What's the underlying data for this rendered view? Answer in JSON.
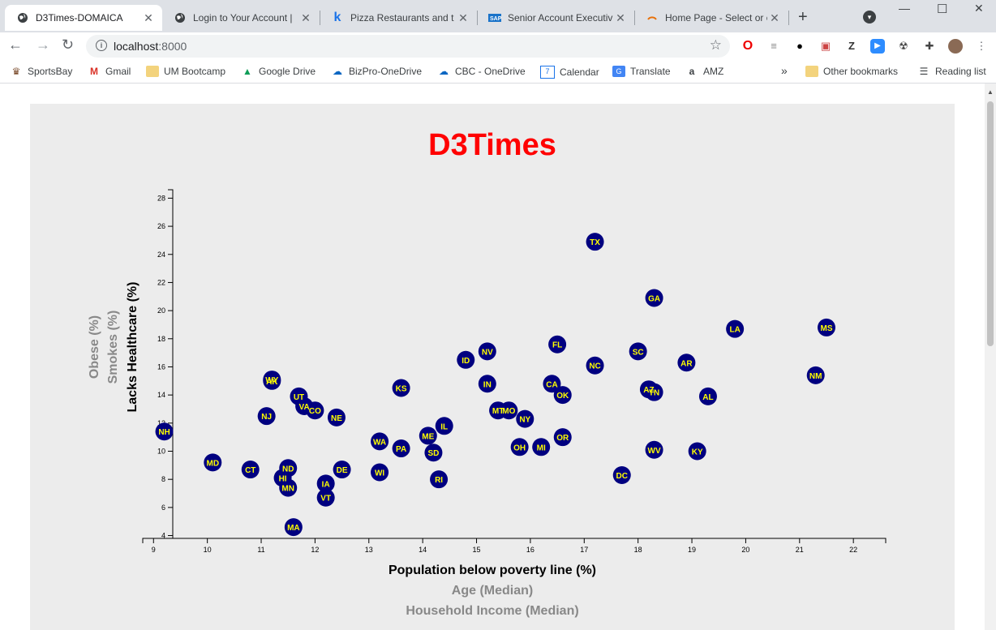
{
  "browser": {
    "tabs": [
      {
        "title": "D3Times-DOMAICA",
        "favicon": "globe-icon",
        "active": true
      },
      {
        "title": "Login to Your Account |",
        "favicon": "globe-icon",
        "active": false
      },
      {
        "title": "Pizza Restaurants and t",
        "favicon": "k-icon",
        "active": false
      },
      {
        "title": "Senior Account Executiv",
        "favicon": "sap-icon",
        "active": false
      },
      {
        "title": "Home Page - Select or c",
        "favicon": "loading-icon",
        "active": false
      }
    ],
    "url_host": "localhost",
    "url_port": ":8000",
    "bookmarks": [
      {
        "label": "SportsBay",
        "icon": "sportsbay-icon"
      },
      {
        "label": "Gmail",
        "icon": "gmail-icon"
      },
      {
        "label": "UM Bootcamp",
        "icon": "folder-icon"
      },
      {
        "label": "Google Drive",
        "icon": "drive-icon"
      },
      {
        "label": "BizPro-OneDrive",
        "icon": "cloud-icon"
      },
      {
        "label": "CBC - OneDrive",
        "icon": "cloud-icon"
      },
      {
        "label": "Calendar",
        "icon": "calendar-icon"
      },
      {
        "label": "Translate",
        "icon": "translate-icon"
      },
      {
        "label": "AMZ",
        "icon": "amazon-icon"
      }
    ],
    "overflow_label": "»",
    "other_bookmarks": "Other bookmarks",
    "reading_list": "Reading list"
  },
  "page": {
    "heading": "D3Times"
  },
  "chart_data": {
    "type": "scatter",
    "xlabels": [
      "Population below poverty line (%)",
      "Age (Median)",
      "Household Income (Median)"
    ],
    "ylabels": [
      "Lacks Healthcare (%)",
      "Smokes (%)",
      "Obese (%)"
    ],
    "active_x": "Population below poverty line (%)",
    "active_y": "Lacks Healthcare (%)",
    "xlim": [
      8.8,
      22.6
    ],
    "ylim": [
      3.8,
      28.6
    ],
    "xticks": [
      9,
      10,
      11,
      12,
      13,
      14,
      15,
      16,
      17,
      18,
      19,
      20,
      21,
      22
    ],
    "yticks": [
      4,
      6,
      8,
      10,
      12,
      14,
      16,
      18,
      20,
      22,
      24,
      26,
      28
    ],
    "grid": false,
    "colors": {
      "marker": "#000080",
      "label": "#ffff00",
      "title": "#ff0000"
    },
    "points": [
      {
        "abbr": "NH",
        "x": 9.2,
        "y": 11.4
      },
      {
        "abbr": "MD",
        "x": 10.1,
        "y": 9.2
      },
      {
        "abbr": "CT",
        "x": 10.8,
        "y": 8.7
      },
      {
        "abbr": "NJ",
        "x": 11.1,
        "y": 12.5
      },
      {
        "abbr": "WY",
        "x": 11.2,
        "y": 15.1
      },
      {
        "abbr": "AK",
        "x": 11.2,
        "y": 15.0
      },
      {
        "abbr": "HI",
        "x": 11.4,
        "y": 8.1
      },
      {
        "abbr": "ND",
        "x": 11.5,
        "y": 8.8
      },
      {
        "abbr": "MN",
        "x": 11.5,
        "y": 7.4
      },
      {
        "abbr": "MA",
        "x": 11.6,
        "y": 4.6
      },
      {
        "abbr": "UT",
        "x": 11.7,
        "y": 13.9
      },
      {
        "abbr": "VA",
        "x": 11.8,
        "y": 13.2
      },
      {
        "abbr": "CO",
        "x": 12.0,
        "y": 12.9
      },
      {
        "abbr": "IA",
        "x": 12.2,
        "y": 7.7
      },
      {
        "abbr": "VT",
        "x": 12.2,
        "y": 6.7
      },
      {
        "abbr": "NE",
        "x": 12.4,
        "y": 12.4
      },
      {
        "abbr": "DE",
        "x": 12.5,
        "y": 8.7
      },
      {
        "abbr": "WA",
        "x": 13.2,
        "y": 10.7
      },
      {
        "abbr": "WI",
        "x": 13.2,
        "y": 8.5
      },
      {
        "abbr": "PA",
        "x": 13.6,
        "y": 10.2
      },
      {
        "abbr": "KS",
        "x": 13.6,
        "y": 14.5
      },
      {
        "abbr": "ME",
        "x": 14.1,
        "y": 11.1
      },
      {
        "abbr": "SD",
        "x": 14.2,
        "y": 9.9
      },
      {
        "abbr": "RI",
        "x": 14.3,
        "y": 8.0
      },
      {
        "abbr": "IL",
        "x": 14.4,
        "y": 11.8
      },
      {
        "abbr": "ID",
        "x": 14.8,
        "y": 16.5
      },
      {
        "abbr": "NV",
        "x": 15.2,
        "y": 17.1
      },
      {
        "abbr": "IN",
        "x": 15.2,
        "y": 14.8
      },
      {
        "abbr": "MT",
        "x": 15.4,
        "y": 12.9
      },
      {
        "abbr": "MO",
        "x": 15.6,
        "y": 12.9
      },
      {
        "abbr": "OH",
        "x": 15.8,
        "y": 10.3
      },
      {
        "abbr": "NY",
        "x": 15.9,
        "y": 12.3
      },
      {
        "abbr": "MI",
        "x": 16.2,
        "y": 10.3
      },
      {
        "abbr": "CA",
        "x": 16.4,
        "y": 14.8
      },
      {
        "abbr": "FL",
        "x": 16.5,
        "y": 17.6
      },
      {
        "abbr": "OK",
        "x": 16.6,
        "y": 14.0
      },
      {
        "abbr": "OR",
        "x": 16.6,
        "y": 11.0
      },
      {
        "abbr": "NC",
        "x": 17.2,
        "y": 16.1
      },
      {
        "abbr": "TX",
        "x": 17.2,
        "y": 24.9
      },
      {
        "abbr": "DC",
        "x": 17.7,
        "y": 8.3
      },
      {
        "abbr": "SC",
        "x": 18.0,
        "y": 17.1
      },
      {
        "abbr": "AZ",
        "x": 18.2,
        "y": 14.4
      },
      {
        "abbr": "TN",
        "x": 18.3,
        "y": 14.2
      },
      {
        "abbr": "GA",
        "x": 18.3,
        "y": 20.9
      },
      {
        "abbr": "WV",
        "x": 18.3,
        "y": 10.1
      },
      {
        "abbr": "AR",
        "x": 18.9,
        "y": 16.3
      },
      {
        "abbr": "KY",
        "x": 19.1,
        "y": 10.0
      },
      {
        "abbr": "AL",
        "x": 19.3,
        "y": 13.9
      },
      {
        "abbr": "LA",
        "x": 19.8,
        "y": 18.7
      },
      {
        "abbr": "NM",
        "x": 21.3,
        "y": 15.4
      },
      {
        "abbr": "MS",
        "x": 21.5,
        "y": 18.8
      }
    ]
  }
}
